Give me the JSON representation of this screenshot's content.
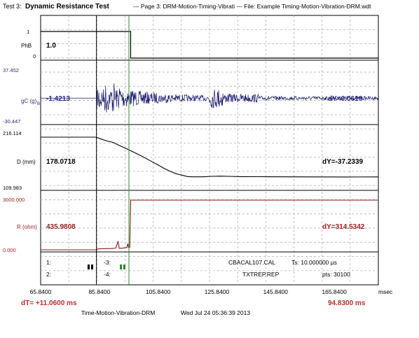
{
  "header": {
    "test_prefix": "Test 3:",
    "test_name": "Dynamic Resistance Test",
    "page_info": "--- Page 3: DRM-Motion-Timing-Vibrati --- File: Example Timing-Motion-Vibration-DRM.wdt"
  },
  "colors": {
    "grid": "#b0b0b0",
    "black": "#000000",
    "gc_trace": "#1a1a6e",
    "gc_text": "#2a2a7a",
    "r_trace": "#8b1a1a",
    "r_text": "#9b2020",
    "green_cursor": "#2e8b2e"
  },
  "chart_data": {
    "type": "line",
    "x_axis": {
      "min": 65.84,
      "max": 180.84,
      "ticks": [
        "65.8400",
        "85.8400",
        "105.8400",
        "125.8400",
        "145.8400",
        "165.8400"
      ],
      "tick_values": [
        65.84,
        85.84,
        105.84,
        125.84,
        145.84,
        165.84
      ],
      "unit": "msec"
    },
    "cursors": {
      "black_x": 84.84,
      "green_x": 95.9
    },
    "channels": [
      {
        "id": "phb",
        "name": "PhB",
        "readout": "1.0",
        "top_label": "1",
        "bottom_label": "0",
        "range": [
          0,
          1
        ],
        "step_x": 96.5,
        "before": 1,
        "after": 0
      },
      {
        "id": "gc",
        "name": "gC (g)",
        "name_sub": "B",
        "readout": "-1.4213",
        "dy": "dY=0.0610",
        "top_label": "37.452",
        "bottom_label": "-30.447",
        "range": [
          -30.447,
          37.452
        ],
        "baseline": 0,
        "onset_x": 84.8
      },
      {
        "id": "d",
        "name": "D (mm)",
        "readout": "178.0718",
        "dy": "dY=-37.2339",
        "top_label": "216.114",
        "bottom_label": "109.983",
        "range": [
          109.983,
          216.114
        ],
        "points": [
          [
            65.84,
            216.1
          ],
          [
            84.84,
            216.1
          ],
          [
            86.5,
            212
          ],
          [
            88.5,
            208
          ],
          [
            90.5,
            205
          ],
          [
            92.5,
            199
          ],
          [
            95,
            192
          ],
          [
            97,
            186
          ],
          [
            100,
            177
          ],
          [
            103,
            167
          ],
          [
            106,
            157
          ],
          [
            108,
            150
          ],
          [
            110,
            144
          ],
          [
            112,
            139
          ],
          [
            114,
            136
          ],
          [
            116,
            133
          ],
          [
            118,
            132.5
          ],
          [
            121,
            132.5
          ],
          [
            124,
            133.5
          ],
          [
            127,
            134
          ],
          [
            130,
            133.5
          ],
          [
            134,
            133
          ],
          [
            140,
            132.8
          ],
          [
            150,
            132.5
          ],
          [
            160,
            132.4
          ],
          [
            170,
            132.3
          ],
          [
            180.84,
            132.4
          ]
        ]
      },
      {
        "id": "r",
        "name": "R (ohm)",
        "readout": "435.9808",
        "dy": "dY=314.5342",
        "top_label": "3000.000",
        "bottom_label": "0.000",
        "range": [
          0,
          3000
        ],
        "points": [
          [
            65.84,
            0
          ],
          [
            84.84,
            0
          ],
          [
            85.5,
            60
          ],
          [
            88,
            70
          ],
          [
            90.5,
            80
          ],
          [
            91.5,
            120
          ],
          [
            92.2,
            520
          ],
          [
            92.6,
            90
          ],
          [
            94,
            110
          ],
          [
            95.2,
            140
          ],
          [
            95.5,
            370
          ],
          [
            95.8,
            130
          ],
          [
            96.2,
            160
          ],
          [
            96.5,
            3000
          ],
          [
            180.84,
            3000
          ]
        ]
      }
    ],
    "info": {
      "label1": "1:",
      "label2": "2:",
      "label3": "-3:",
      "label4": "-4:",
      "cal_file": "CBACAL107.CAL",
      "ts": "Ts: 10.000000 µs",
      "trep_file": "TXTREP.REP",
      "pts": "pts: 30100"
    },
    "dT": "dT= +11.0600 ms",
    "cursor_time": "94.8300 ms"
  },
  "footer": {
    "test_file": "Time-Motion-Vibration-DRM",
    "date": "Wed Jul 24 05:36:39 2013"
  }
}
